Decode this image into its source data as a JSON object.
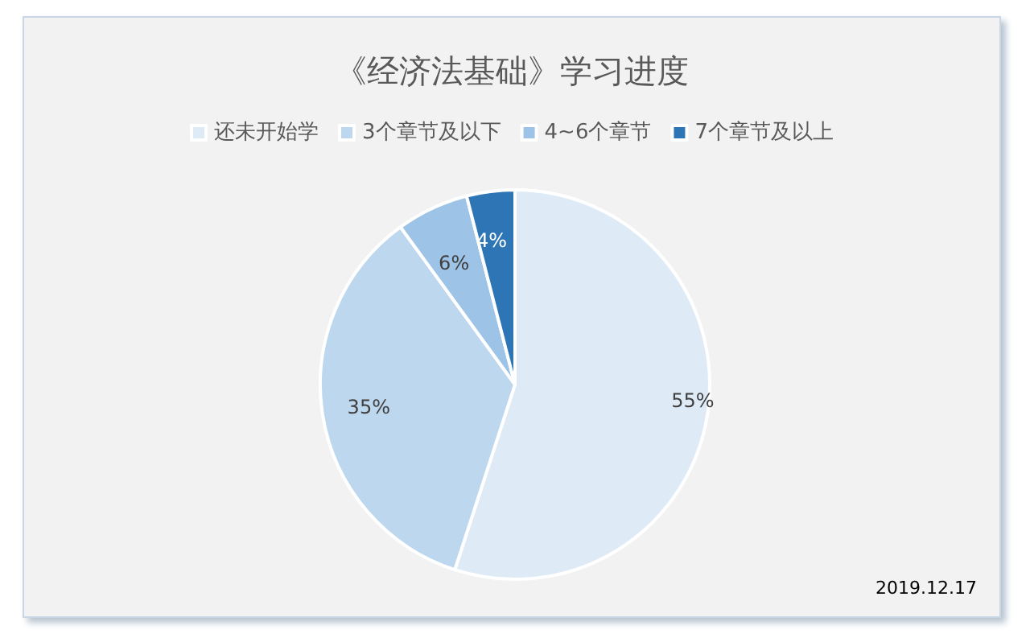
{
  "chart_data": {
    "type": "pie",
    "title": "《经济法基础》学习进度",
    "categories": [
      "还未开始学",
      "3个章节及以下",
      "4~6个章节",
      "7个章节及以上"
    ],
    "values": [
      55,
      35,
      6,
      4
    ],
    "colors": [
      "#deebf7",
      "#bdd7ee",
      "#9dc3e6",
      "#2e75b6"
    ],
    "value_labels": [
      "55%",
      "35%",
      "6%",
      "4%"
    ],
    "legend": "top",
    "annotations": [
      "2019.12.17"
    ]
  }
}
